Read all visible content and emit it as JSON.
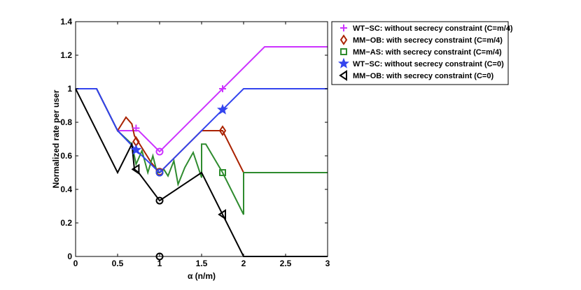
{
  "chart_data": {
    "type": "line",
    "xlabel": "α (n/m)",
    "ylabel": "Normalized rate per user",
    "xlim": [
      0,
      3
    ],
    "ylim": [
      0,
      1.4
    ],
    "x_ticks": [
      "0",
      "0.5",
      "1",
      "1.5",
      "2",
      "2.5",
      "3"
    ],
    "y_ticks": [
      "0",
      "0.2",
      "0.4",
      "0.6",
      "0.8",
      "1",
      "1.2",
      "1.4"
    ],
    "grid": false,
    "legend_position": "outside top-right",
    "series": [
      {
        "name": "WT−SC: without secrecy constraint (C=m/4)",
        "color": "#cc33ff",
        "marker": "plus",
        "points": [
          [
            0,
            1
          ],
          [
            0.25,
            1
          ],
          [
            0.5,
            0.75
          ],
          [
            0.75,
            0.75
          ],
          [
            1,
            0.625
          ],
          [
            2.25,
            1.25
          ],
          [
            3,
            1.25
          ]
        ],
        "markers": [
          [
            0.72,
            0.765
          ],
          [
            1,
            0.625
          ],
          [
            1.75,
            1.0
          ]
        ]
      },
      {
        "name": "MM−OB: with secrecy constraint (C=m/4)",
        "color": "#aa2200",
        "marker": "diamond",
        "points": [
          [
            0,
            1
          ],
          [
            0.25,
            1
          ],
          [
            0.5,
            0.75
          ],
          [
            0.6,
            0.83
          ],
          [
            0.67,
            0.79
          ],
          [
            0.7,
            0.72
          ],
          [
            0.8,
            0.64
          ],
          [
            0.9,
            0.56
          ],
          [
            1,
            0.5
          ],
          [
            1.5,
            0.75
          ],
          [
            1.75,
            0.75
          ],
          [
            2,
            0.5
          ],
          [
            3,
            0.5
          ]
        ],
        "markers": [
          [
            0.72,
            0.685
          ],
          [
            1,
            0.505
          ],
          [
            1.75,
            0.75
          ]
        ]
      },
      {
        "name": "MM−AS: with secrecy constraint (C=m/4)",
        "color": "#2e8b2e",
        "marker": "square",
        "points": [
          [
            0,
            1
          ],
          [
            0.25,
            1
          ],
          [
            0.5,
            0.75
          ],
          [
            0.67,
            0.67
          ],
          [
            0.72,
            0.55
          ],
          [
            0.79,
            0.63
          ],
          [
            0.86,
            0.5
          ],
          [
            0.92,
            0.6
          ],
          [
            0.97,
            0.5
          ],
          [
            1,
            0.5
          ],
          [
            1.05,
            0.52
          ],
          [
            1.1,
            0.48
          ],
          [
            1.17,
            0.57
          ],
          [
            1.22,
            0.43
          ],
          [
            1.3,
            0.53
          ],
          [
            1.4,
            0.62
          ],
          [
            1.5,
            0.47
          ],
          [
            1.5,
            0.67
          ],
          [
            1.55,
            0.67
          ],
          [
            1.75,
            0.5
          ],
          [
            2,
            0.25
          ],
          [
            2,
            0.5
          ],
          [
            3,
            0.5
          ]
        ],
        "markers": [
          [
            1,
            0.5
          ],
          [
            1.75,
            0.5
          ]
        ]
      },
      {
        "name": "WT−SC: without secrecy constraint (C=0)",
        "color": "#3344ee",
        "marker": "star",
        "points": [
          [
            0,
            1
          ],
          [
            0.25,
            1
          ],
          [
            0.5,
            0.75
          ],
          [
            0.75,
            0.62
          ],
          [
            1,
            0.5
          ],
          [
            2,
            1
          ],
          [
            3,
            1
          ]
        ],
        "markers": [
          [
            0.72,
            0.635
          ],
          [
            1,
            0.5
          ],
          [
            1.75,
            0.875
          ]
        ]
      },
      {
        "name": "MM−OB: with secrecy constraint (C=0)",
        "color": "#000000",
        "marker": "triangle-left",
        "points": [
          [
            0,
            1
          ],
          [
            0.5,
            0.5
          ],
          [
            0.67,
            0.67
          ],
          [
            0.7,
            0.52
          ],
          [
            0.75,
            0.5
          ],
          [
            1,
            0.333
          ],
          [
            1.5,
            0.5
          ],
          [
            2,
            0
          ],
          [
            3,
            0
          ]
        ],
        "markers": [
          [
            0.72,
            0.52
          ],
          [
            1,
            0.333
          ],
          [
            1,
            0
          ],
          [
            1.75,
            0.25
          ]
        ]
      }
    ]
  }
}
